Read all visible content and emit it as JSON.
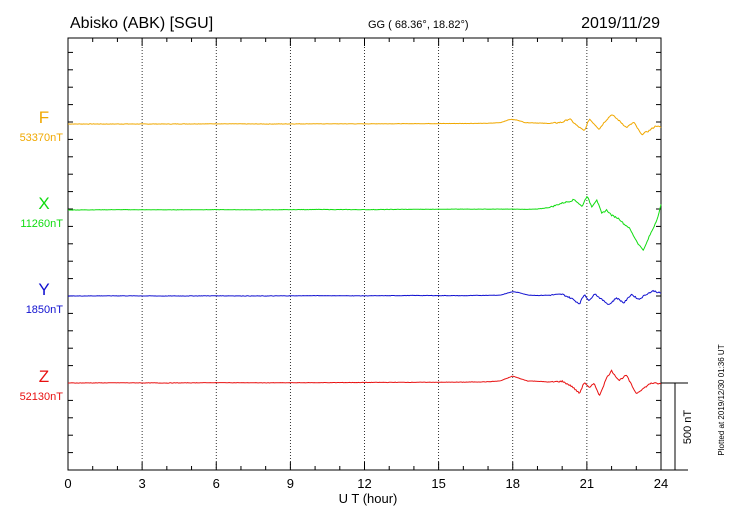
{
  "header": {
    "station": "Abisko (ABK)  [SGU]",
    "coords": "GG ( 68.36°,  18.82°)",
    "date": "2019/11/29"
  },
  "footer": {
    "plotted": "Plotted at 2019/12/30 01:36 UT",
    "scale_bar_label": "500 nT"
  },
  "chart_data": {
    "type": "line",
    "xlabel": "U T (hour)",
    "xlim": [
      0,
      24
    ],
    "x_ticks": [
      "0",
      "3",
      "6",
      "9",
      "12",
      "15",
      "18",
      "21",
      "24"
    ],
    "scale_bar_nT": 500,
    "grid": "dotted vertical at 3-hour intervals",
    "series": [
      {
        "name": "F",
        "baseline_label": "53370nT",
        "color": "#f0a800",
        "points": [
          [
            0,
            0
          ],
          [
            2,
            0
          ],
          [
            4,
            0
          ],
          [
            6,
            1
          ],
          [
            8,
            0
          ],
          [
            10,
            1
          ],
          [
            12,
            1
          ],
          [
            14,
            2
          ],
          [
            16,
            3
          ],
          [
            17,
            4
          ],
          [
            17.5,
            8
          ],
          [
            17.9,
            27
          ],
          [
            18.2,
            22
          ],
          [
            18.5,
            8
          ],
          [
            19,
            6
          ],
          [
            19.5,
            3
          ],
          [
            20,
            10
          ],
          [
            20.3,
            30
          ],
          [
            20.6,
            -10
          ],
          [
            20.9,
            -40
          ],
          [
            21.1,
            30
          ],
          [
            21.3,
            0
          ],
          [
            21.5,
            -30
          ],
          [
            21.7,
            10
          ],
          [
            22,
            55
          ],
          [
            22.3,
            20
          ],
          [
            22.6,
            -20
          ],
          [
            22.9,
            10
          ],
          [
            23.2,
            -60
          ],
          [
            23.5,
            -40
          ],
          [
            23.8,
            -10
          ],
          [
            24,
            -20
          ]
        ]
      },
      {
        "name": "X",
        "baseline_label": "11260nT",
        "color": "#10dc10",
        "points": [
          [
            0,
            0
          ],
          [
            2,
            2
          ],
          [
            4,
            1
          ],
          [
            6,
            2
          ],
          [
            8,
            1
          ],
          [
            10,
            3
          ],
          [
            12,
            2
          ],
          [
            14,
            4
          ],
          [
            16,
            5
          ],
          [
            17,
            5
          ],
          [
            18,
            5
          ],
          [
            18.5,
            4
          ],
          [
            19,
            5
          ],
          [
            19.5,
            15
          ],
          [
            20,
            40
          ],
          [
            20.3,
            50
          ],
          [
            20.5,
            60
          ],
          [
            20.8,
            20
          ],
          [
            21,
            80
          ],
          [
            21.2,
            20
          ],
          [
            21.4,
            60
          ],
          [
            21.6,
            -20
          ],
          [
            21.8,
            0
          ],
          [
            22,
            -30
          ],
          [
            22.3,
            -50
          ],
          [
            22.5,
            -80
          ],
          [
            22.7,
            -100
          ],
          [
            22.9,
            -150
          ],
          [
            23.1,
            -200
          ],
          [
            23.3,
            -230
          ],
          [
            23.5,
            -160
          ],
          [
            23.7,
            -100
          ],
          [
            23.9,
            -30
          ],
          [
            24,
            30
          ]
        ]
      },
      {
        "name": "Y",
        "baseline_label": "1850nT",
        "color": "#1010d0",
        "points": [
          [
            0,
            0
          ],
          [
            2,
            1
          ],
          [
            4,
            0
          ],
          [
            6,
            1
          ],
          [
            8,
            0
          ],
          [
            10,
            2
          ],
          [
            12,
            1
          ],
          [
            14,
            3
          ],
          [
            16,
            2
          ],
          [
            17,
            4
          ],
          [
            17.5,
            5
          ],
          [
            18,
            25
          ],
          [
            18.3,
            18
          ],
          [
            18.6,
            6
          ],
          [
            19,
            3
          ],
          [
            19.5,
            5
          ],
          [
            20,
            10
          ],
          [
            20.4,
            -15
          ],
          [
            20.7,
            -45
          ],
          [
            20.9,
            10
          ],
          [
            21.1,
            -30
          ],
          [
            21.3,
            15
          ],
          [
            21.6,
            -20
          ],
          [
            21.9,
            -50
          ],
          [
            22.2,
            -10
          ],
          [
            22.5,
            -40
          ],
          [
            22.8,
            10
          ],
          [
            23.1,
            -20
          ],
          [
            23.4,
            10
          ],
          [
            23.7,
            30
          ],
          [
            24,
            15
          ]
        ]
      },
      {
        "name": "Z",
        "baseline_label": "52130nT",
        "color": "#e81010",
        "points": [
          [
            0,
            0
          ],
          [
            2,
            1
          ],
          [
            4,
            0
          ],
          [
            6,
            2
          ],
          [
            8,
            1
          ],
          [
            10,
            2
          ],
          [
            12,
            3
          ],
          [
            14,
            4
          ],
          [
            16,
            5
          ],
          [
            17,
            7
          ],
          [
            17.5,
            12
          ],
          [
            18,
            40
          ],
          [
            18.3,
            25
          ],
          [
            18.6,
            12
          ],
          [
            19,
            10
          ],
          [
            19.5,
            5
          ],
          [
            20,
            10
          ],
          [
            20.4,
            -20
          ],
          [
            20.7,
            -60
          ],
          [
            20.9,
            5
          ],
          [
            21.1,
            -30
          ],
          [
            21.3,
            0
          ],
          [
            21.5,
            -75
          ],
          [
            21.8,
            30
          ],
          [
            22,
            70
          ],
          [
            22.3,
            15
          ],
          [
            22.6,
            45
          ],
          [
            22.8,
            -10
          ],
          [
            23,
            -60
          ],
          [
            23.3,
            -30
          ],
          [
            23.6,
            0
          ],
          [
            24,
            -5
          ]
        ]
      }
    ]
  }
}
